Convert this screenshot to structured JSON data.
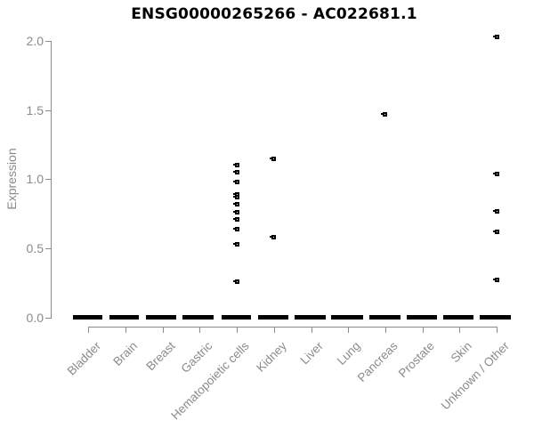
{
  "chart_data": {
    "type": "scatter",
    "title": "ENSG00000265266 - AC022681.1",
    "xlabel": "",
    "ylabel": "Expression",
    "ylim": [
      0,
      2.05
    ],
    "yticks": [
      0,
      0.5,
      1,
      1.5,
      2
    ],
    "ytick_labels": [
      "0.0",
      "0.5",
      "1.0",
      "1.5",
      "2.0"
    ],
    "grid": false,
    "legend": false,
    "marker": "open-square",
    "colors": {
      "points": "#000000",
      "axes": "#8b8b8b",
      "title": "#000000",
      "background": "#ffffff"
    },
    "categories": [
      "Bladder",
      "Brain",
      "Breast",
      "Gastric",
      "Hematopoietic cells",
      "Kidney",
      "Liver",
      "Lung",
      "Pancreas",
      "Prostate",
      "Skin",
      "Unknown / Other"
    ],
    "series": [
      {
        "category": "Bladder",
        "zero_cluster": true,
        "values_above_zero": []
      },
      {
        "category": "Brain",
        "zero_cluster": true,
        "values_above_zero": []
      },
      {
        "category": "Breast",
        "zero_cluster": true,
        "values_above_zero": []
      },
      {
        "category": "Gastric",
        "zero_cluster": true,
        "values_above_zero": []
      },
      {
        "category": "Hematopoietic cells",
        "zero_cluster": true,
        "values_above_zero": [
          1.1,
          1.05,
          0.98,
          0.89,
          0.87,
          0.82,
          0.76,
          0.71,
          0.64,
          0.53,
          0.26
        ]
      },
      {
        "category": "Kidney",
        "zero_cluster": true,
        "values_above_zero": [
          1.15,
          0.58
        ]
      },
      {
        "category": "Liver",
        "zero_cluster": true,
        "values_above_zero": []
      },
      {
        "category": "Lung",
        "zero_cluster": true,
        "values_above_zero": []
      },
      {
        "category": "Pancreas",
        "zero_cluster": true,
        "values_above_zero": [
          1.47
        ]
      },
      {
        "category": "Prostate",
        "zero_cluster": true,
        "values_above_zero": []
      },
      {
        "category": "Skin",
        "zero_cluster": true,
        "values_above_zero": []
      },
      {
        "category": "Unknown / Other",
        "zero_cluster": true,
        "values_above_zero": [
          2.03,
          1.04,
          0.77,
          0.62,
          0.27
        ]
      }
    ]
  }
}
